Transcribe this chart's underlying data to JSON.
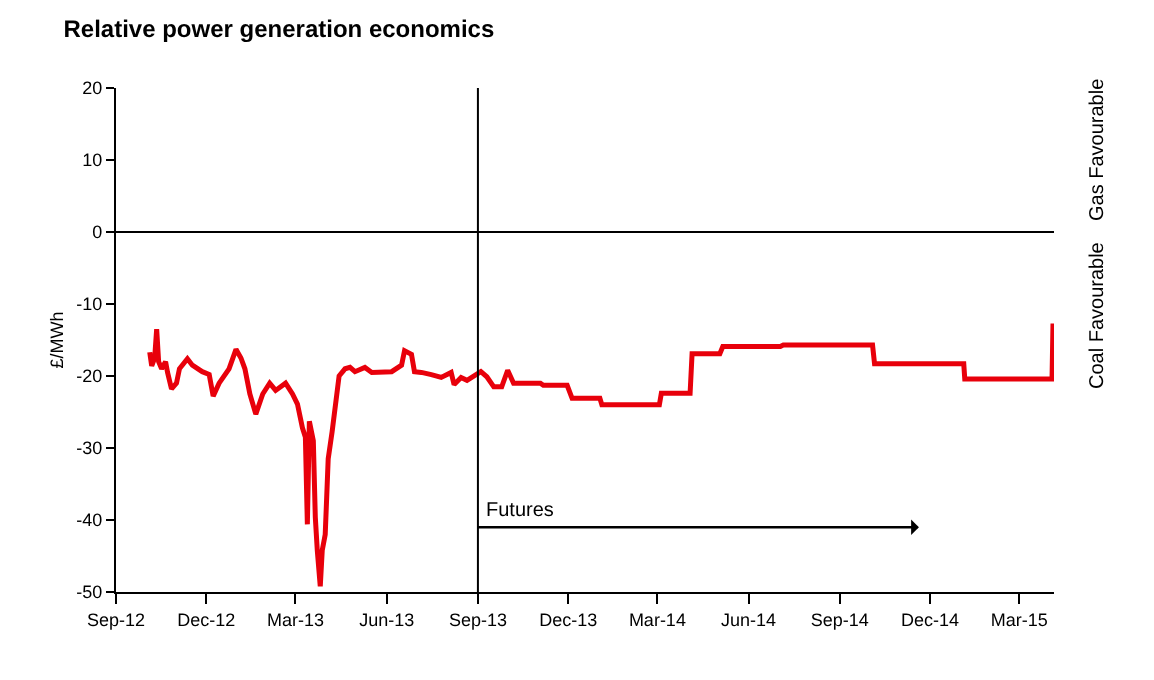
{
  "chart_data": {
    "type": "line",
    "title": "Relative power generation economics",
    "ylabel": "£/MWh",
    "x": [
      "2012-10-05",
      "2012-10-07",
      "2012-10-10",
      "2012-10-12",
      "2012-10-14",
      "2012-10-17",
      "2012-10-21",
      "2012-10-23",
      "2012-10-27",
      "2012-11-01",
      "2012-11-04",
      "2012-11-12",
      "2012-11-17",
      "2012-11-27",
      "2012-12-04",
      "2012-12-08",
      "2012-12-14",
      "2012-12-24",
      "2012-12-31",
      "2013-01-05",
      "2013-01-09",
      "2013-01-14",
      "2013-01-20",
      "2013-01-27",
      "2013-02-03",
      "2013-02-09",
      "2013-02-19",
      "2013-02-26",
      "2013-03-03",
      "2013-03-08",
      "2013-03-11",
      "2013-03-13",
      "2013-03-15",
      "2013-03-19",
      "2013-03-21",
      "2013-03-23",
      "2013-03-26",
      "2013-03-28",
      "2013-03-31",
      "2013-04-03",
      "2013-04-07",
      "2013-04-14",
      "2013-04-20",
      "2013-04-25",
      "2013-04-30",
      "2013-05-10",
      "2013-05-17",
      "2013-06-06",
      "2013-06-16",
      "2013-06-19",
      "2013-06-26",
      "2013-06-29",
      "2013-07-06",
      "2013-07-16",
      "2013-07-26",
      "2013-08-05",
      "2013-08-08",
      "2013-08-15",
      "2013-08-21",
      "2013-09-04",
      "2013-09-10",
      "2013-09-17",
      "2013-09-25",
      "2013-10-01",
      "2013-10-07",
      "2013-11-03",
      "2013-11-06",
      "2013-11-30",
      "2013-12-05",
      "2014-01-02",
      "2014-01-04",
      "2014-03-03",
      "2014-03-05",
      "2014-04-03",
      "2014-04-05",
      "2014-05-03",
      "2014-05-06",
      "2014-07-03",
      "2014-07-06",
      "2014-10-04",
      "2014-10-06",
      "2014-12-18",
      "2015-01-04",
      "2015-01-05",
      "2015-04-03",
      "2015-04-04"
    ],
    "series": [
      {
        "color": "#e8000b",
        "values": [
          -16.7,
          -18.6,
          -17.5,
          -13.5,
          -18,
          -19,
          -18,
          -19.5,
          -21.8,
          -21,
          -19,
          -17.6,
          -18.5,
          -19.4,
          -19.8,
          -22.8,
          -21,
          -19,
          -16.3,
          -17.5,
          -19,
          -22.5,
          -25.3,
          -22.5,
          -21,
          -22,
          -21,
          -22.5,
          -23.9,
          -27.2,
          -28.5,
          -40.6,
          -26.3,
          -29,
          -39.6,
          -44.2,
          -49.2,
          -44.2,
          -42,
          -31.5,
          -27.7,
          -20,
          -19,
          -18.8,
          -19.4,
          -18.8,
          -19.5,
          -19.4,
          -18.5,
          -16.5,
          -17,
          -19.4,
          -19.5,
          -19.8,
          -20.2,
          -19.5,
          -21.2,
          -20.2,
          -20.6,
          -19.4,
          -20.1,
          -21.5,
          -21.5,
          -19.2,
          -21,
          -21,
          -21.3,
          -21.3,
          -23.1,
          -23.1,
          -24,
          -24,
          -22.4,
          -22.4,
          -16.9,
          -16.9,
          -15.9,
          -15.9,
          -15.7,
          -15.7,
          -18.3,
          -18.3,
          -18.3,
          -20.4,
          -20.4,
          -12.7
        ]
      }
    ],
    "xlim": [
      "2012-09-01",
      "2015-04-05"
    ],
    "xticks": [
      {
        "value": "2012-09-01",
        "label": "Sep-12"
      },
      {
        "value": "2012-12-01",
        "label": "Dec-12"
      },
      {
        "value": "2013-03-01",
        "label": "Mar-13"
      },
      {
        "value": "2013-06-01",
        "label": "Jun-13"
      },
      {
        "value": "2013-09-01",
        "label": "Sep-13"
      },
      {
        "value": "2013-12-01",
        "label": "Dec-13"
      },
      {
        "value": "2014-03-01",
        "label": "Mar-14"
      },
      {
        "value": "2014-06-01",
        "label": "Jun-14"
      },
      {
        "value": "2014-09-01",
        "label": "Sep-14"
      },
      {
        "value": "2014-12-01",
        "label": "Dec-14"
      },
      {
        "value": "2015-03-01",
        "label": "Mar-15"
      }
    ],
    "ylim": [
      -50,
      20
    ],
    "yticks": [
      -50,
      -40,
      -30,
      -20,
      -10,
      0,
      10,
      20
    ],
    "marker": "none",
    "line_style": "solid",
    "ref_lines": [
      {
        "axis": "y",
        "value": 0,
        "color": "#000000"
      },
      {
        "axis": "x",
        "value": "2013-09-01",
        "color": "#000000"
      }
    ],
    "annotations": [
      {
        "text": "Futures",
        "x": "2013-09-01",
        "y": -41
      },
      "Gas Favourable",
      "Coal Favourable"
    ]
  }
}
